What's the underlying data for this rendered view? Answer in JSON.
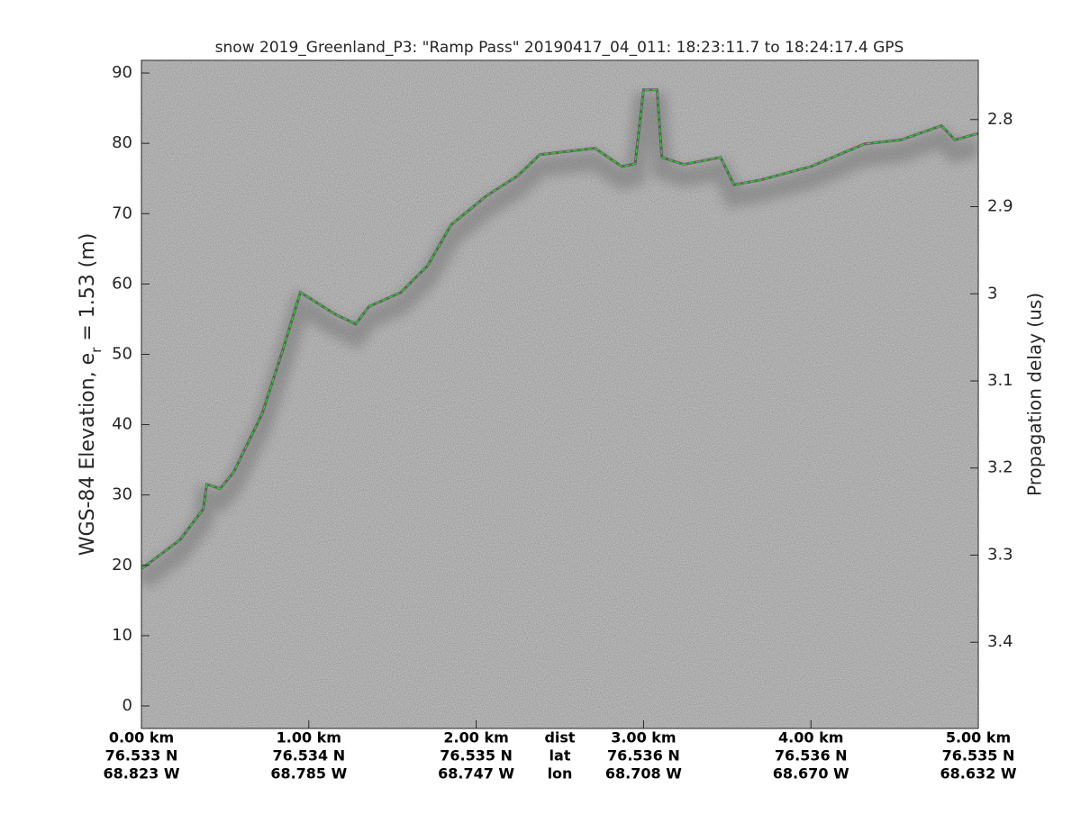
{
  "chart_data": {
    "type": "echogram",
    "title": "snow 2019_Greenland_P3: \"Ramp Pass\"  20190417_04_011: 18:23:11.7 to 18:24:17.4 GPS",
    "ylabel": {
      "main": "WGS-84 Elevation, e",
      "sub": "r",
      "rest": " = 1.53 (m)"
    },
    "y2label": "Propagation delay (us)",
    "xlim": [
      0,
      5
    ],
    "xticks": [
      {
        "value": 0,
        "label": "0.00 km"
      },
      {
        "value": 1,
        "label": "1.00 km"
      },
      {
        "value": 2,
        "label": "2.00 km"
      },
      {
        "value": 3,
        "label": "3.00 km"
      },
      {
        "value": 4,
        "label": "4.00 km"
      },
      {
        "value": 5,
        "label": "5.00 km"
      }
    ],
    "lat_labels": [
      "76.533 N",
      "76.534 N",
      "76.535 N",
      "76.536 N",
      "76.536 N",
      "76.535 N"
    ],
    "lon_labels": [
      "68.823 W",
      "68.785 W",
      "68.747 W",
      "68.708 W",
      "68.670 W",
      "68.632 W"
    ],
    "row_names": [
      "dist",
      "lat",
      "lon"
    ],
    "ylim": [
      -3.2,
      91.8
    ],
    "yticks": [
      0,
      10,
      20,
      30,
      40,
      50,
      60,
      70,
      80,
      90
    ],
    "y2lim": [
      3.499,
      2.732
    ],
    "y2ticks": [
      2.8,
      2.9,
      3,
      3.1,
      3.2,
      3.3,
      3.4
    ],
    "series": [
      {
        "name": "surface",
        "color": "#22dd22",
        "x": [
          0,
          0.23,
          0.37,
          0.39,
          0.47,
          0.55,
          0.72,
          0.85,
          0.95,
          1.15,
          1.28,
          1.36,
          1.55,
          1.71,
          1.85,
          2.06,
          2.25,
          2.38,
          2.71,
          2.87,
          2.95,
          3.0,
          3.08,
          3.11,
          3.24,
          3.46,
          3.54,
          3.7,
          4.0,
          4.32,
          4.54,
          4.78,
          4.86,
          5.0
        ],
        "values": [
          19.5,
          23.6,
          28,
          31.5,
          30.9,
          33.2,
          41.5,
          51,
          58.8,
          55.8,
          54.3,
          56.8,
          58.8,
          62.6,
          68.4,
          72.5,
          75.4,
          78.4,
          79.3,
          76.7,
          77.1,
          87.6,
          87.6,
          78,
          77,
          78,
          74.1,
          74.8,
          76.7,
          79.9,
          80.5,
          82.5,
          80.5,
          81.4
        ]
      }
    ]
  }
}
